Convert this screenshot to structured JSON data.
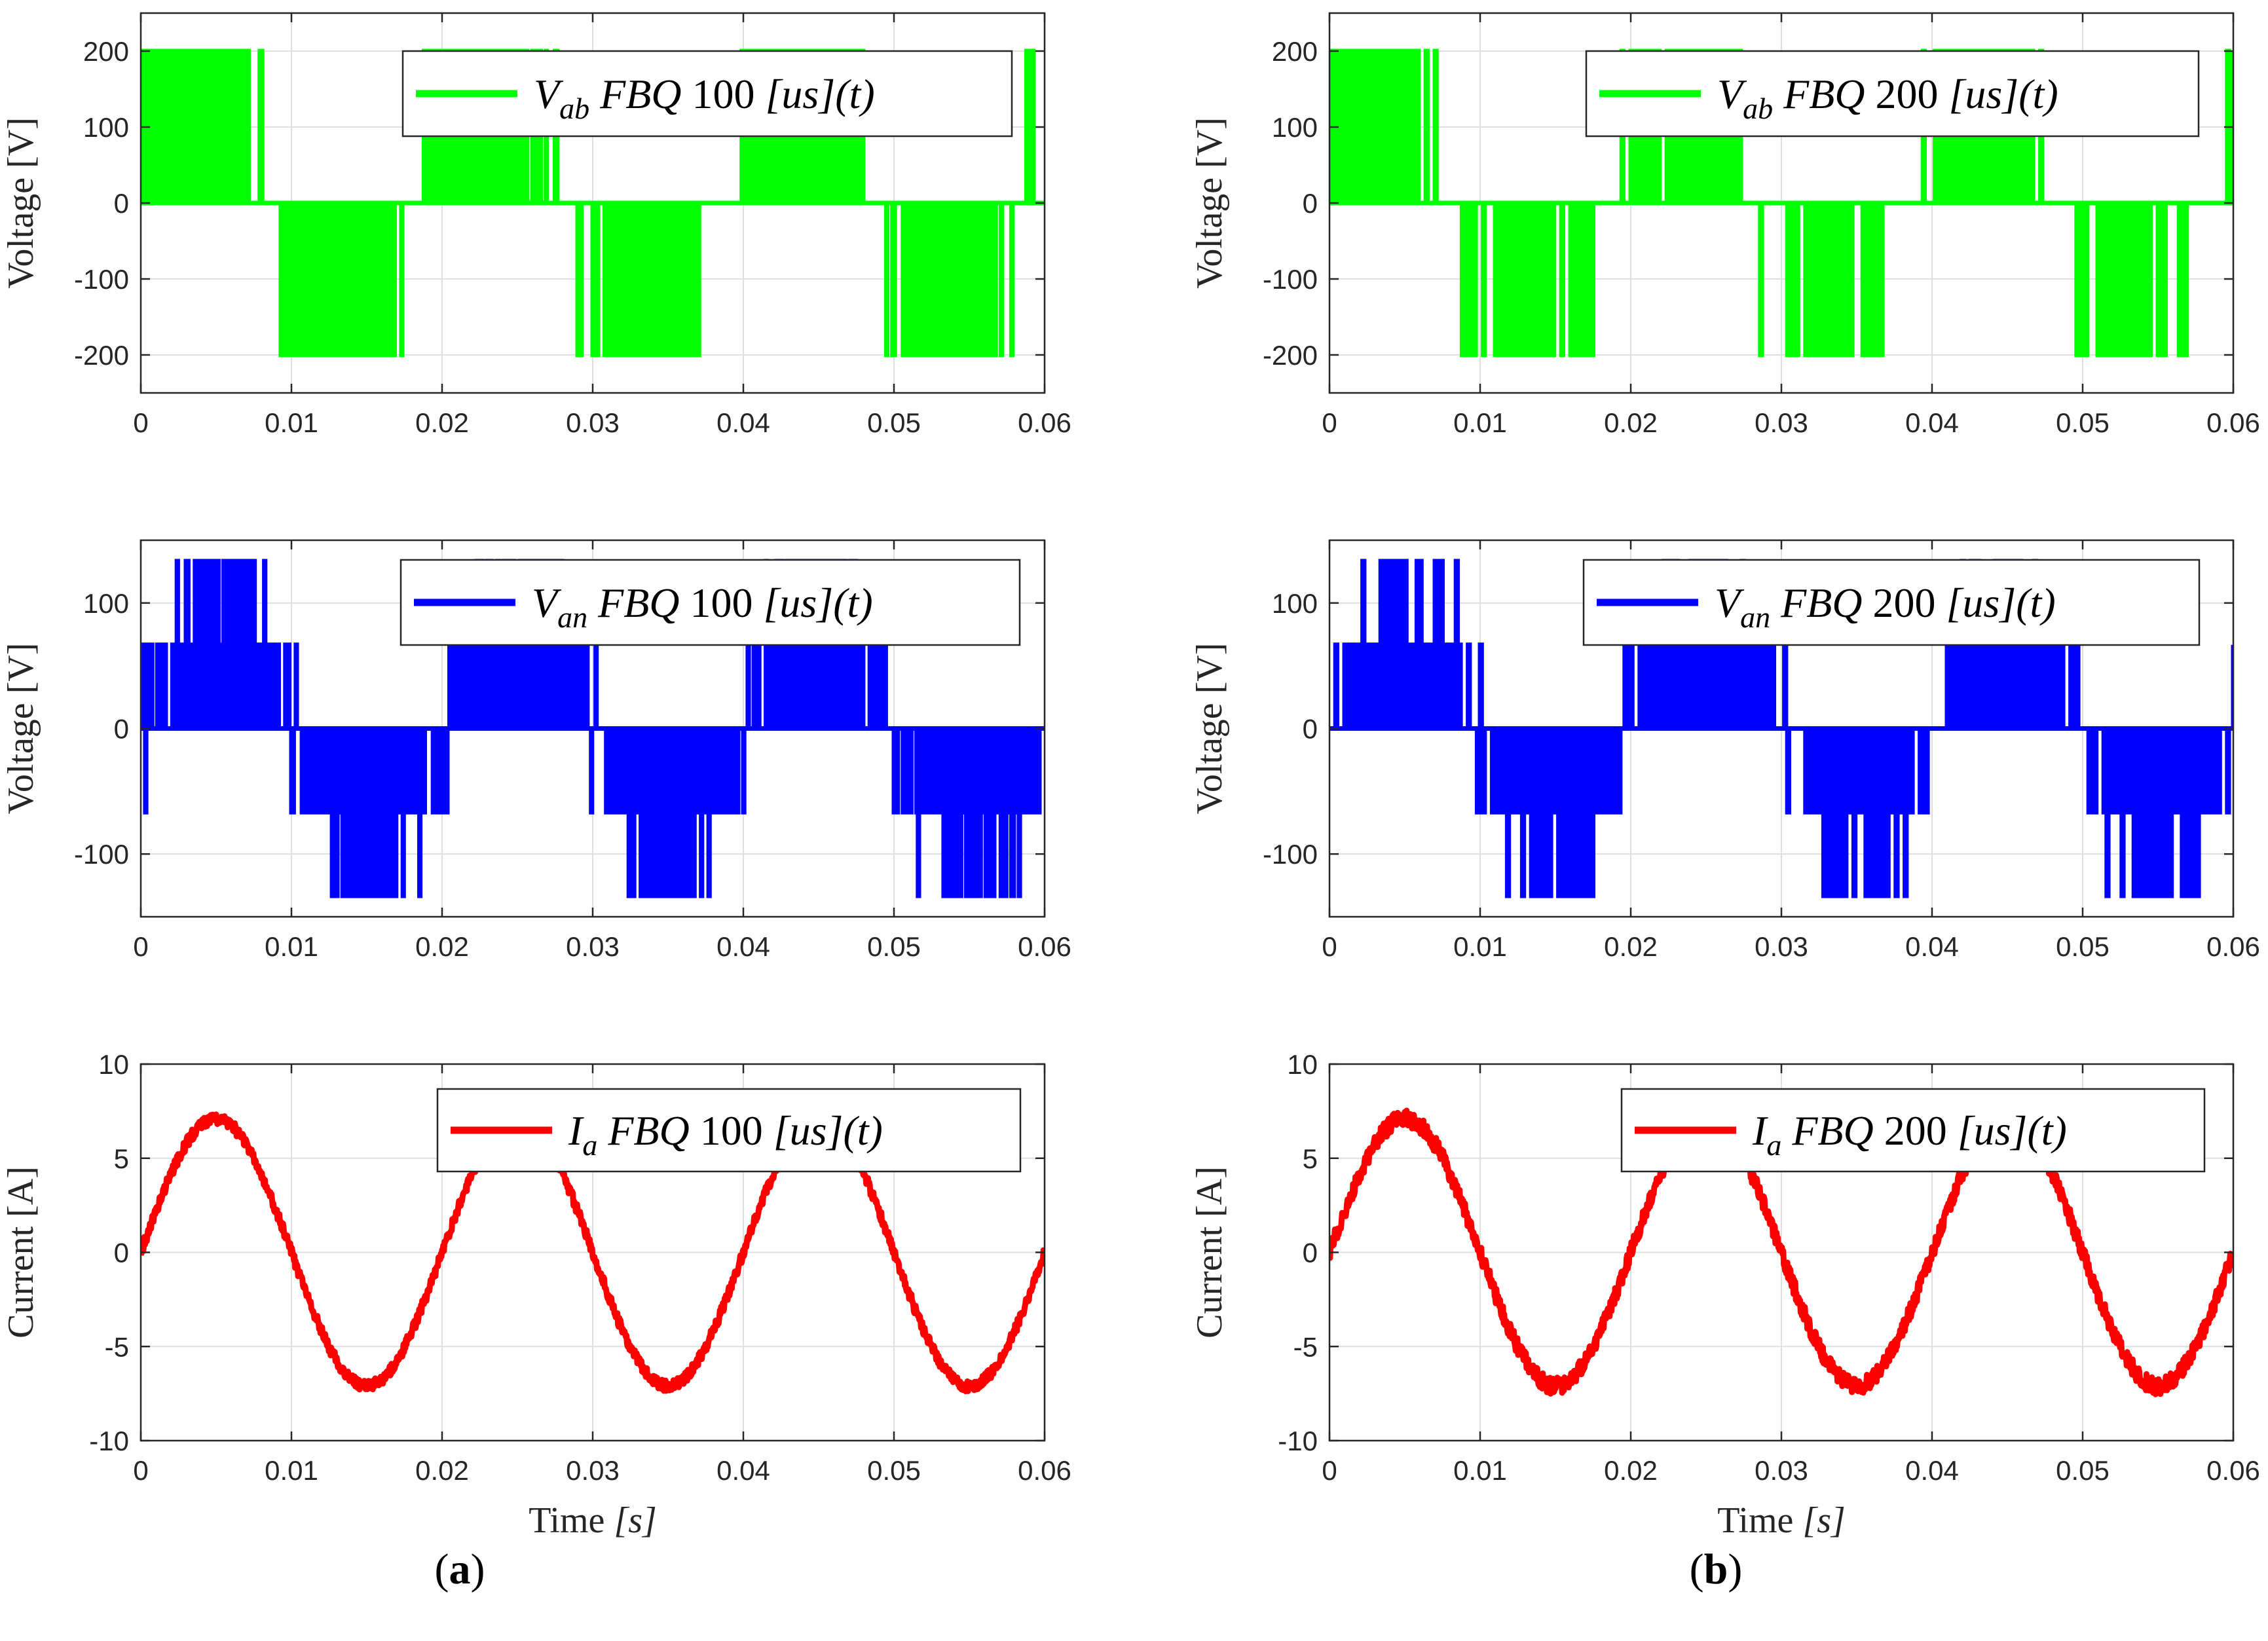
{
  "figure": {
    "time_label": "Time",
    "time_unit": "[s]",
    "panel_tags": [
      {
        "open": "(",
        "letter": "a",
        "close": ")"
      },
      {
        "open": "(",
        "letter": "b",
        "close": ")"
      }
    ]
  },
  "colors": {
    "vab": "#00ff00",
    "van": "#0000ff",
    "ia": "#ff0000",
    "axis": "#262626",
    "grid": "#dfdfdf"
  },
  "chart_data": [
    {
      "id": "a-vab",
      "column": "a",
      "row": 0,
      "type": "line",
      "signal": "vab",
      "period_us": 100,
      "stepped": true,
      "title": "",
      "ylabel": "Voltage [V]",
      "xlabel": "",
      "xlim": [
        0,
        0.06
      ],
      "ylim": [
        -250,
        250
      ],
      "xticks": [
        0,
        0.01,
        0.02,
        0.03,
        0.04,
        0.05,
        0.06
      ],
      "xtick_labels": [
        "0",
        "0.01",
        "0.02",
        "0.03",
        "0.04",
        "0.05",
        "0.06"
      ],
      "yticks": [
        -200,
        -100,
        0,
        100,
        200
      ],
      "ytick_labels": [
        "-200",
        "-100",
        "0",
        "100",
        "200"
      ],
      "levels": [
        -200,
        0,
        200
      ],
      "fundamental_amplitude": 180,
      "frequency_hz": 50,
      "phase_deg": 30,
      "legend": {
        "symbol": "V",
        "subscript": "ab",
        "method": "FBQ",
        "value": "100",
        "unit": "[us]",
        "arg": "(t)"
      },
      "series": [
        {
          "name": "V_ab FBQ 100 [us](t)",
          "color": "#00ff00"
        }
      ]
    },
    {
      "id": "a-van",
      "column": "a",
      "row": 1,
      "type": "line",
      "signal": "van",
      "period_us": 100,
      "stepped": true,
      "title": "",
      "ylabel": "Voltage [V]",
      "xlabel": "",
      "xlim": [
        0,
        0.06
      ],
      "ylim": [
        -150,
        150
      ],
      "xticks": [
        0,
        0.01,
        0.02,
        0.03,
        0.04,
        0.05,
        0.06
      ],
      "xtick_labels": [
        "0",
        "0.01",
        "0.02",
        "0.03",
        "0.04",
        "0.05",
        "0.06"
      ],
      "yticks": [
        -100,
        0,
        100
      ],
      "ytick_labels": [
        "-100",
        "0",
        "100"
      ],
      "levels": [
        -133.3,
        -66.7,
        0,
        66.7,
        133.3
      ],
      "fundamental_amplitude": 110,
      "frequency_hz": 50,
      "phase_deg": 0,
      "legend": {
        "symbol": "V",
        "subscript": "an",
        "method": "FBQ",
        "value": "100",
        "unit": "[us]",
        "arg": "(t)"
      },
      "series": [
        {
          "name": "V_an FBQ 100 [us](t)",
          "color": "#0000ff"
        }
      ]
    },
    {
      "id": "a-ia",
      "column": "a",
      "row": 2,
      "type": "line",
      "signal": "ia",
      "period_us": 100,
      "stepped": false,
      "title": "",
      "ylabel": "Current [A]",
      "xlabel": "Time [s]",
      "xlim": [
        0,
        0.06
      ],
      "ylim": [
        -10,
        10
      ],
      "xticks": [
        0,
        0.01,
        0.02,
        0.03,
        0.04,
        0.05,
        0.06
      ],
      "xtick_labels": [
        "0",
        "0.01",
        "0.02",
        "0.03",
        "0.04",
        "0.05",
        "0.06"
      ],
      "yticks": [
        -10,
        -5,
        0,
        5,
        10
      ],
      "ytick_labels": [
        "-10",
        "-5",
        "0",
        "5",
        "10"
      ],
      "amplitude": 7.1,
      "frequency_hz": 50,
      "ripple": 0.3,
      "legend": {
        "symbol": "I",
        "subscript": "a",
        "method": "FBQ",
        "value": "100",
        "unit": "[us]",
        "arg": "(t)"
      },
      "series": [
        {
          "name": "I_a FBQ 100 [us](t)",
          "color": "#ff0000"
        }
      ]
    },
    {
      "id": "b-vab",
      "column": "b",
      "row": 0,
      "type": "line",
      "signal": "vab",
      "period_us": 200,
      "stepped": true,
      "title": "",
      "ylabel": "Voltage [V]",
      "xlabel": "",
      "xlim": [
        0,
        0.06
      ],
      "ylim": [
        -250,
        250
      ],
      "xticks": [
        0,
        0.01,
        0.02,
        0.03,
        0.04,
        0.05,
        0.06
      ],
      "xtick_labels": [
        "0",
        "0.01",
        "0.02",
        "0.03",
        "0.04",
        "0.05",
        "0.06"
      ],
      "yticks": [
        -200,
        -100,
        0,
        100,
        200
      ],
      "ytick_labels": [
        "-200",
        "-100",
        "0",
        "100",
        "200"
      ],
      "levels": [
        -200,
        0,
        200
      ],
      "fundamental_amplitude": 180,
      "frequency_hz": 50,
      "phase_deg": 30,
      "legend": {
        "symbol": "V",
        "subscript": "ab",
        "method": "FBQ",
        "value": "200",
        "unit": "[us]",
        "arg": "(t)"
      },
      "series": [
        {
          "name": "V_ab FBQ 200 [us](t)",
          "color": "#00ff00"
        }
      ]
    },
    {
      "id": "b-van",
      "column": "b",
      "row": 1,
      "type": "line",
      "signal": "van",
      "period_us": 200,
      "stepped": true,
      "title": "",
      "ylabel": "Voltage [V]",
      "xlabel": "",
      "xlim": [
        0,
        0.06
      ],
      "ylim": [
        -150,
        150
      ],
      "xticks": [
        0,
        0.01,
        0.02,
        0.03,
        0.04,
        0.05,
        0.06
      ],
      "xtick_labels": [
        "0",
        "0.01",
        "0.02",
        "0.03",
        "0.04",
        "0.05",
        "0.06"
      ],
      "yticks": [
        -100,
        0,
        100
      ],
      "ytick_labels": [
        "-100",
        "0",
        "100"
      ],
      "levels": [
        -133.3,
        -66.7,
        0,
        66.7,
        133.3
      ],
      "fundamental_amplitude": 110,
      "frequency_hz": 50,
      "phase_deg": 0,
      "legend": {
        "symbol": "V",
        "subscript": "an",
        "method": "FBQ",
        "value": "200",
        "unit": "[us]",
        "arg": "(t)"
      },
      "series": [
        {
          "name": "V_an FBQ 200 [us](t)",
          "color": "#0000ff"
        }
      ]
    },
    {
      "id": "b-ia",
      "column": "b",
      "row": 2,
      "type": "line",
      "signal": "ia",
      "period_us": 200,
      "stepped": false,
      "title": "",
      "ylabel": "Current [A]",
      "xlabel": "Time [s]",
      "xlim": [
        0,
        0.06
      ],
      "ylim": [
        -10,
        10
      ],
      "xticks": [
        0,
        0.01,
        0.02,
        0.03,
        0.04,
        0.05,
        0.06
      ],
      "xtick_labels": [
        "0",
        "0.01",
        "0.02",
        "0.03",
        "0.04",
        "0.05",
        "0.06"
      ],
      "yticks": [
        -10,
        -5,
        0,
        5,
        10
      ],
      "ytick_labels": [
        "-10",
        "-5",
        "0",
        "5",
        "10"
      ],
      "amplitude": 7.1,
      "frequency_hz": 50,
      "ripple": 0.45,
      "legend": {
        "symbol": "I",
        "subscript": "a",
        "method": "FBQ",
        "value": "200",
        "unit": "[us]",
        "arg": "(t)"
      },
      "series": [
        {
          "name": "I_a FBQ 200 [us](t)",
          "color": "#ff0000"
        }
      ]
    }
  ]
}
